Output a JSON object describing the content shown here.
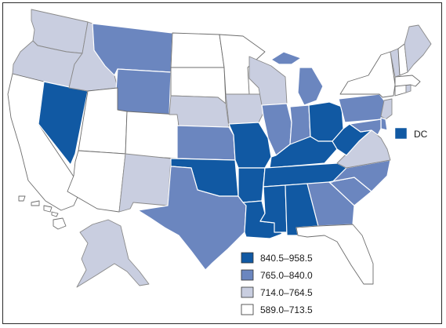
{
  "colors": {
    "tier1": "#1159a3",
    "tier2": "#6b86bf",
    "tier3": "#c9cee0",
    "tier4": "#ffffff"
  },
  "legend": [
    {
      "label": "840.5–958.5",
      "tier": "tier1"
    },
    {
      "label": "765.0–840.0",
      "tier": "tier2"
    },
    {
      "label": "714.0–764.5",
      "tier": "tier3"
    },
    {
      "label": "589.0–713.5",
      "tier": "tier4"
    }
  ],
  "dc": {
    "label": "DC",
    "tier": "tier1"
  },
  "states": [
    {
      "code": "WA",
      "tier": "tier3"
    },
    {
      "code": "OR",
      "tier": "tier3"
    },
    {
      "code": "CA",
      "tier": "tier4"
    },
    {
      "code": "NV",
      "tier": "tier1"
    },
    {
      "code": "ID",
      "tier": "tier3"
    },
    {
      "code": "MT",
      "tier": "tier2"
    },
    {
      "code": "WY",
      "tier": "tier2"
    },
    {
      "code": "UT",
      "tier": "tier4"
    },
    {
      "code": "CO",
      "tier": "tier4"
    },
    {
      "code": "AZ",
      "tier": "tier4"
    },
    {
      "code": "NM",
      "tier": "tier3"
    },
    {
      "code": "ND",
      "tier": "tier4"
    },
    {
      "code": "SD",
      "tier": "tier4"
    },
    {
      "code": "NE",
      "tier": "tier3"
    },
    {
      "code": "KS",
      "tier": "tier2"
    },
    {
      "code": "OK",
      "tier": "tier1"
    },
    {
      "code": "TX",
      "tier": "tier2"
    },
    {
      "code": "MN",
      "tier": "tier4"
    },
    {
      "code": "IA",
      "tier": "tier3"
    },
    {
      "code": "MO",
      "tier": "tier1"
    },
    {
      "code": "AR",
      "tier": "tier1"
    },
    {
      "code": "LA",
      "tier": "tier1"
    },
    {
      "code": "WI",
      "tier": "tier3"
    },
    {
      "code": "IL",
      "tier": "tier2"
    },
    {
      "code": "MI",
      "tier": "tier2"
    },
    {
      "code": "IN",
      "tier": "tier2"
    },
    {
      "code": "OH",
      "tier": "tier1"
    },
    {
      "code": "KY",
      "tier": "tier1"
    },
    {
      "code": "TN",
      "tier": "tier1"
    },
    {
      "code": "MS",
      "tier": "tier1"
    },
    {
      "code": "AL",
      "tier": "tier1"
    },
    {
      "code": "GA",
      "tier": "tier2"
    },
    {
      "code": "FL",
      "tier": "tier4"
    },
    {
      "code": "SC",
      "tier": "tier2"
    },
    {
      "code": "NC",
      "tier": "tier2"
    },
    {
      "code": "VA",
      "tier": "tier3"
    },
    {
      "code": "WV",
      "tier": "tier1"
    },
    {
      "code": "PA",
      "tier": "tier2"
    },
    {
      "code": "NY",
      "tier": "tier4"
    },
    {
      "code": "NJ",
      "tier": "tier3"
    },
    {
      "code": "DE",
      "tier": "tier2"
    },
    {
      "code": "MD",
      "tier": "tier2"
    },
    {
      "code": "CT",
      "tier": "tier4"
    },
    {
      "code": "RI",
      "tier": "tier3"
    },
    {
      "code": "MA",
      "tier": "tier4"
    },
    {
      "code": "VT",
      "tier": "tier3"
    },
    {
      "code": "NH",
      "tier": "tier4"
    },
    {
      "code": "ME",
      "tier": "tier3"
    },
    {
      "code": "AK",
      "tier": "tier3"
    },
    {
      "code": "HI",
      "tier": "tier4"
    }
  ]
}
